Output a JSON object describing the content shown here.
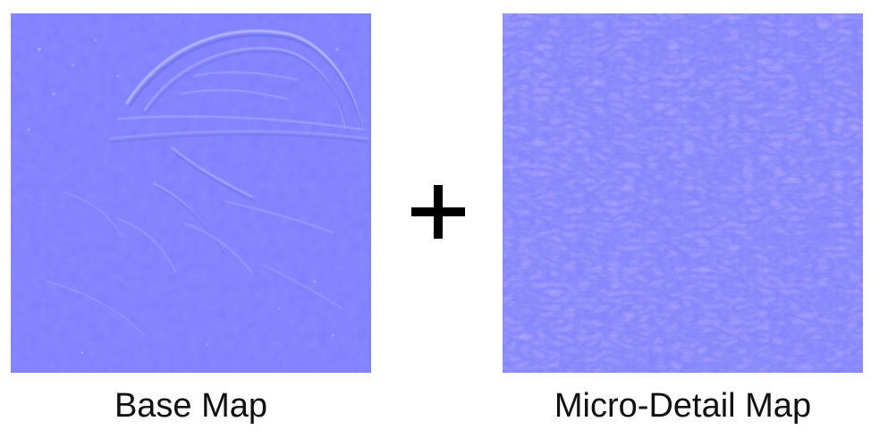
{
  "panels": {
    "base": {
      "caption": "Base Map",
      "color": "#8080ff",
      "highlight_color": "#a8a8ff",
      "shadow_color": "#6a72ea"
    },
    "detail": {
      "caption": "Micro-Detail Map",
      "color": "#8585fd",
      "highlight_color": "#b0a8ff",
      "shadow_color": "#6b78ec"
    }
  },
  "operator": {
    "symbol_icon": "plus-icon",
    "color": "#000000"
  }
}
